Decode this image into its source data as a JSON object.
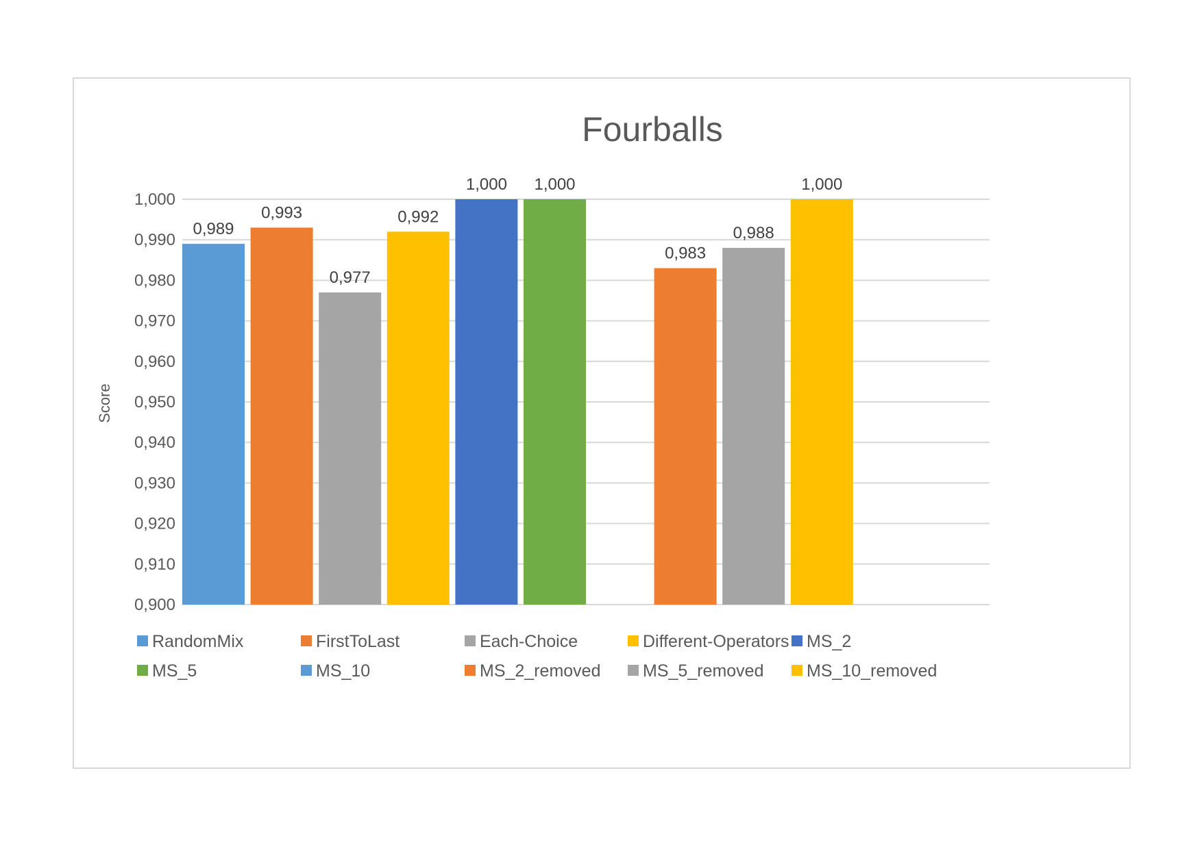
{
  "chart_data": {
    "type": "bar",
    "title": "Fourballs",
    "ylabel": "Score",
    "xlabel": "",
    "ylim": [
      0.9,
      1.0
    ],
    "y_ticks": [
      "0,900",
      "0,910",
      "0,920",
      "0,930",
      "0,940",
      "0,950",
      "0,960",
      "0,970",
      "0,980",
      "0,990",
      "1,000"
    ],
    "grid": true,
    "legend_position": "bottom",
    "series": [
      {
        "name": "RandomMix",
        "color": "#5B9BD5",
        "group": 0,
        "value": 0.989,
        "label": "0,989"
      },
      {
        "name": "FirstToLast",
        "color": "#ED7D31",
        "group": 0,
        "value": 0.993,
        "label": "0,993"
      },
      {
        "name": "Each-Choice",
        "color": "#A5A5A5",
        "group": 0,
        "value": 0.977,
        "label": "0,977"
      },
      {
        "name": "Different-Operators",
        "color": "#FFC000",
        "group": 0,
        "value": 0.992,
        "label": "0,992"
      },
      {
        "name": "MS_2",
        "color": "#4472C4",
        "group": 0,
        "value": 1.0,
        "label": "1,000"
      },
      {
        "name": "MS_5",
        "color": "#70AD47",
        "group": 0,
        "value": 1.0,
        "label": "1,000"
      },
      {
        "name": "MS_10",
        "color": "#5B9BD5",
        "group": 1,
        "value": null,
        "label": ""
      },
      {
        "name": "MS_2_removed",
        "color": "#ED7D31",
        "group": 1,
        "value": 0.983,
        "label": "0,983"
      },
      {
        "name": "MS_5_removed",
        "color": "#A5A5A5",
        "group": 1,
        "value": 0.988,
        "label": "0,988"
      },
      {
        "name": "MS_10_removed",
        "color": "#FFC000",
        "group": 1,
        "value": 1.0,
        "label": "1,000"
      }
    ]
  }
}
